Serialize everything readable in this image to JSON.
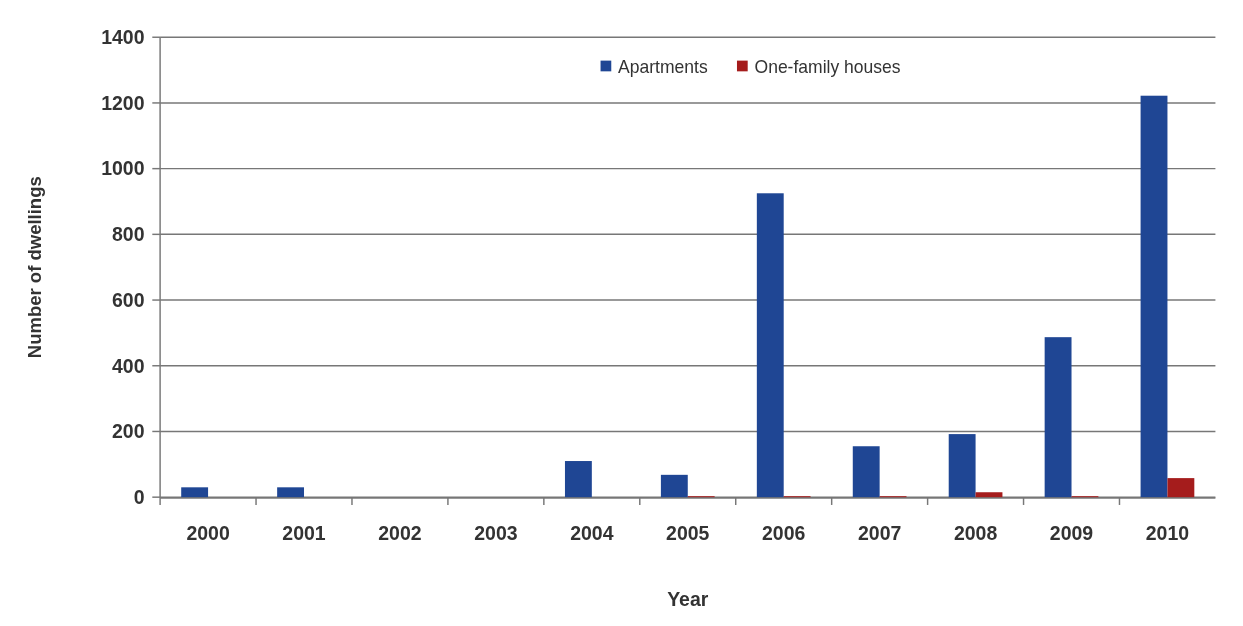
{
  "chart_data": {
    "type": "bar",
    "xlabel": "Year",
    "ylabel": "Number of dwellings",
    "categories": [
      "2000",
      "2001",
      "2002",
      "2003",
      "2004",
      "2005",
      "2006",
      "2007",
      "2008",
      "2009",
      "2010"
    ],
    "series": [
      {
        "name": "Apartments",
        "color": "#1f4694",
        "values": [
          30,
          30,
          0,
          0,
          110,
          68,
          925,
          155,
          192,
          487,
          1222
        ]
      },
      {
        "name": "One-family houses",
        "color": "#a51c1c",
        "values": [
          0,
          0,
          0,
          0,
          0,
          3,
          3,
          3,
          15,
          3,
          58
        ]
      }
    ],
    "ylim": [
      0,
      1400
    ],
    "yticks": [
      0,
      200,
      400,
      600,
      800,
      1000,
      1200,
      1400
    ],
    "grid": "y",
    "legend": "top"
  }
}
